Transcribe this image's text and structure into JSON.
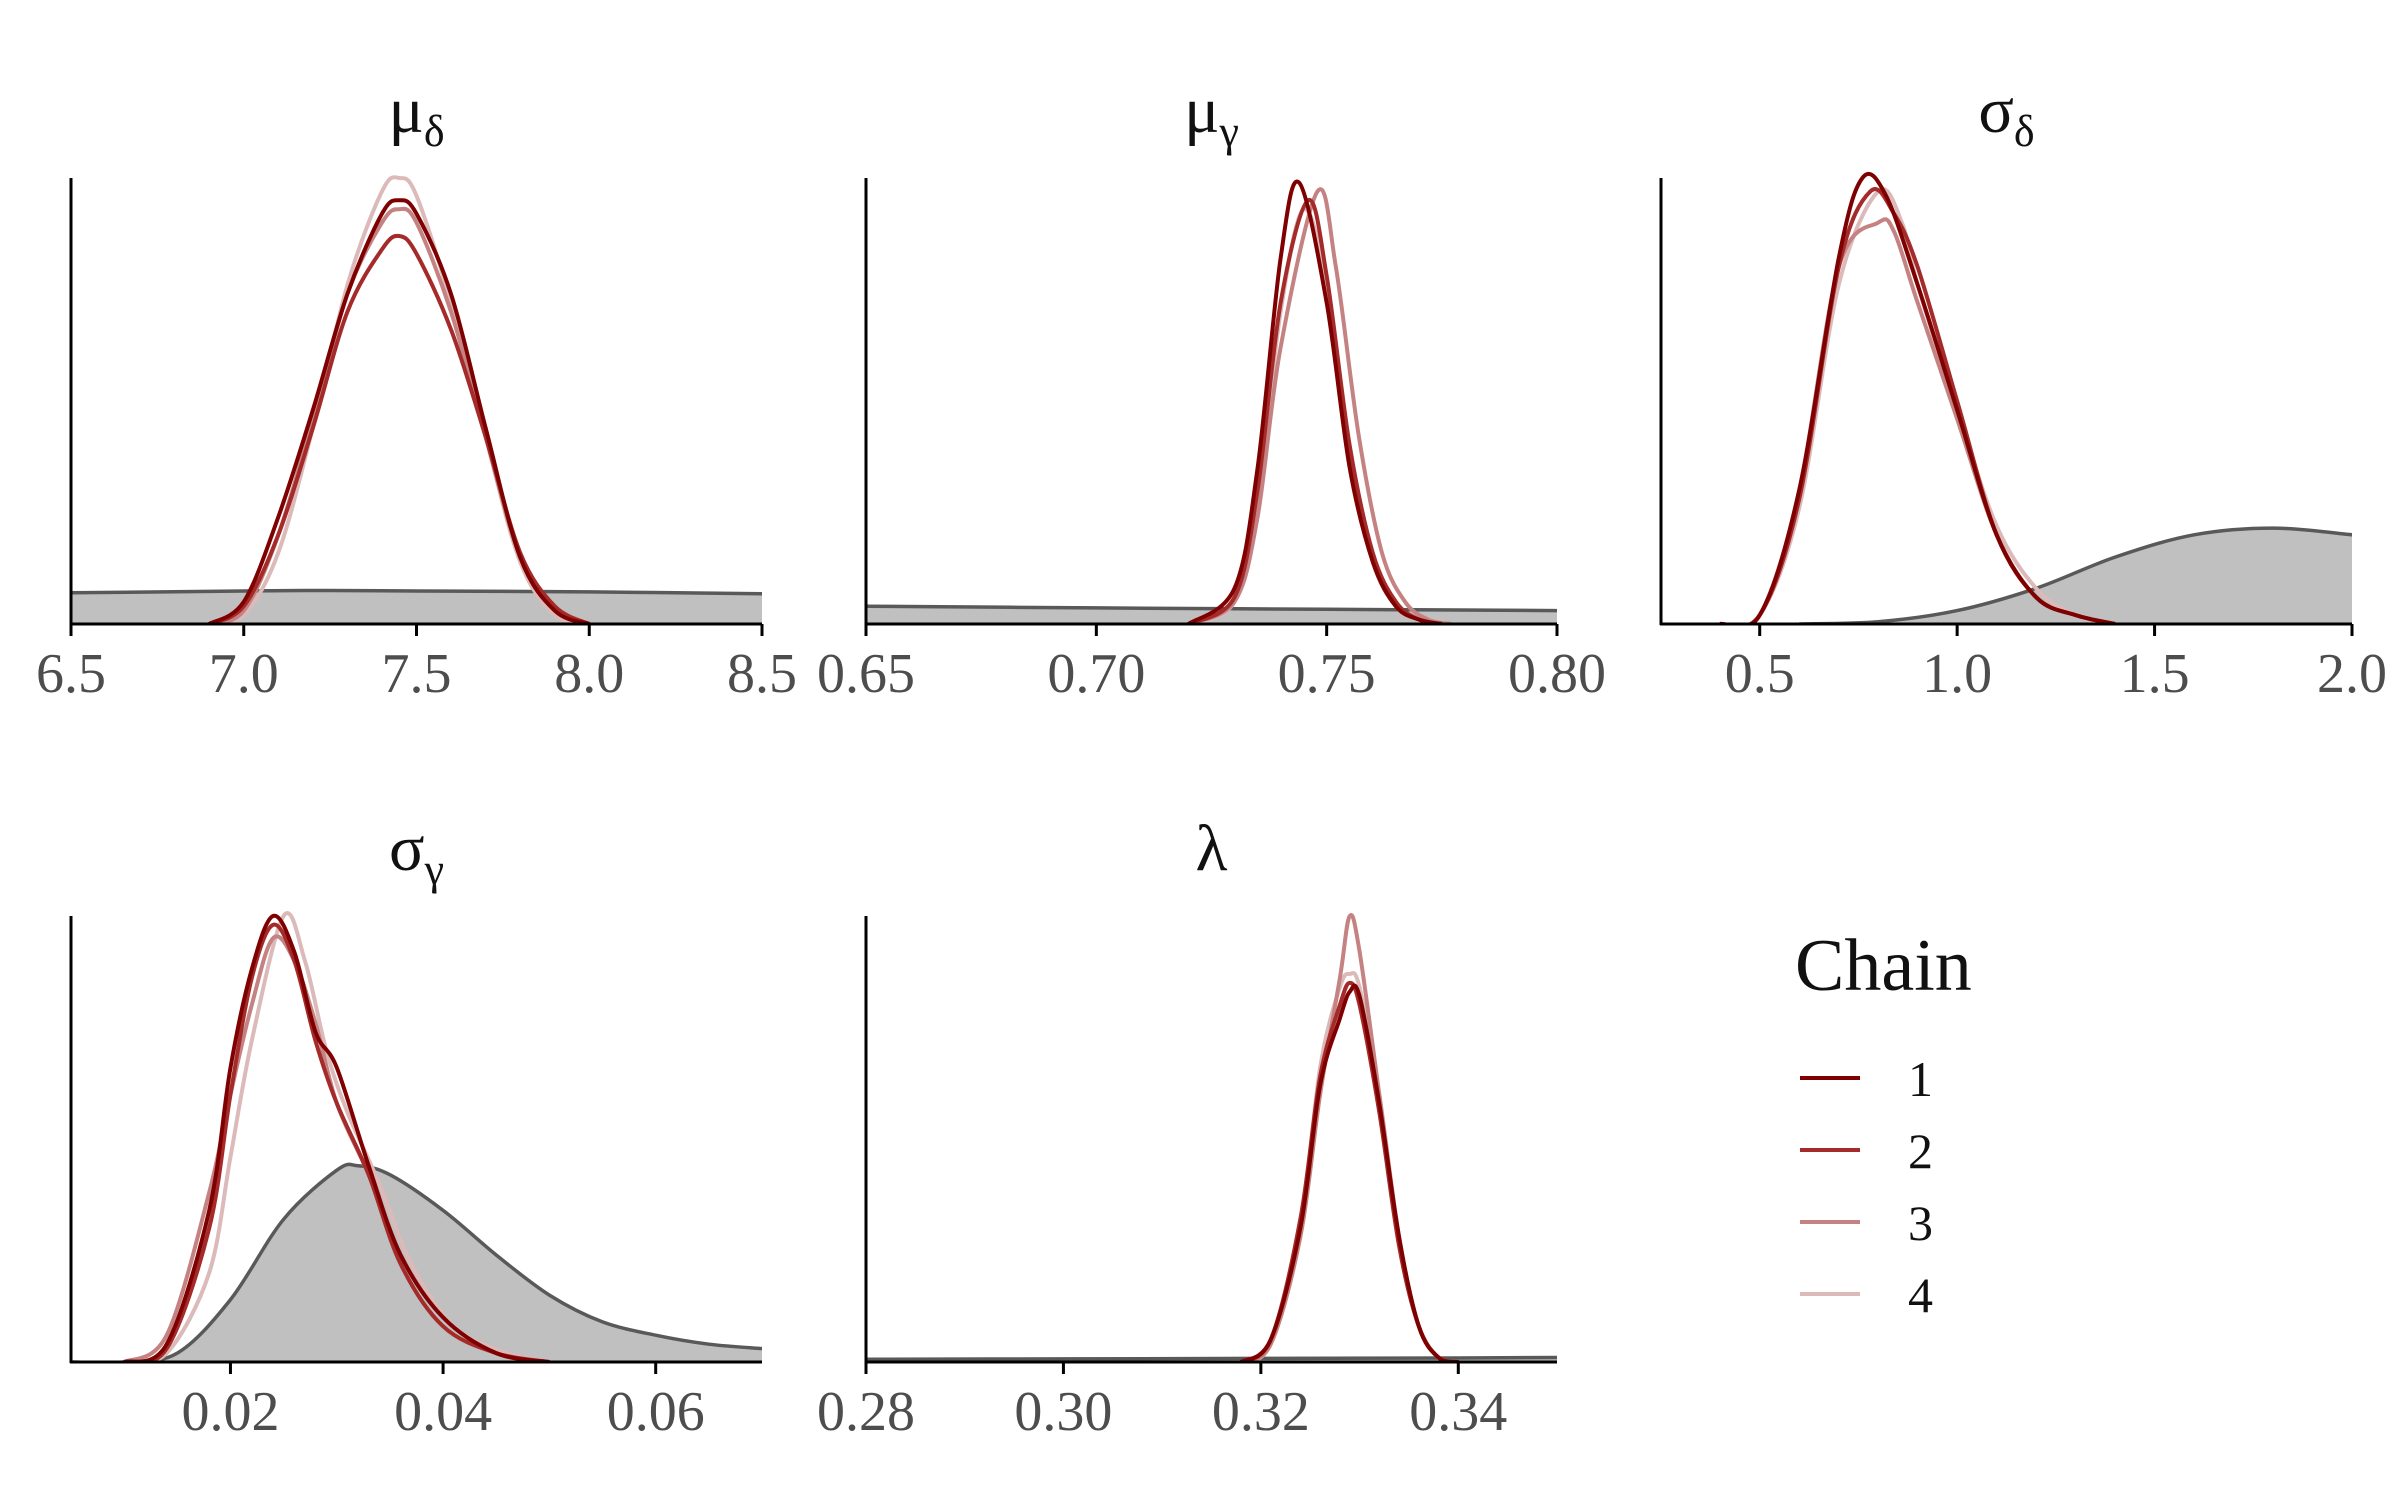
{
  "chart_data": [
    {
      "type": "area",
      "title": "μ_δ",
      "title_main": "μ",
      "title_sub": "δ",
      "xlim": [
        6.5,
        8.5
      ],
      "xticks": [
        6.5,
        7.0,
        7.5,
        8.0,
        8.5
      ],
      "xtick_labels": [
        "6.5",
        "7.0",
        "7.5",
        "8.0",
        "8.5"
      ],
      "prior": {
        "x": [
          6.5,
          7.0,
          7.25,
          7.5,
          8.0,
          8.5
        ],
        "y": [
          0.07,
          0.074,
          0.075,
          0.074,
          0.072,
          0.068
        ]
      },
      "chains": [
        {
          "chain": "1",
          "x": [
            6.9,
            7.0,
            7.1,
            7.2,
            7.3,
            7.4,
            7.45,
            7.5,
            7.6,
            7.7,
            7.8,
            7.9,
            8.0
          ],
          "y": [
            0.0,
            0.05,
            0.24,
            0.48,
            0.74,
            0.92,
            0.95,
            0.92,
            0.74,
            0.44,
            0.15,
            0.03,
            0.0
          ]
        },
        {
          "chain": "2",
          "x": [
            6.9,
            7.0,
            7.1,
            7.2,
            7.3,
            7.4,
            7.45,
            7.5,
            7.6,
            7.7,
            7.8,
            7.9,
            8.0
          ],
          "y": [
            0.0,
            0.04,
            0.2,
            0.44,
            0.7,
            0.84,
            0.87,
            0.83,
            0.66,
            0.42,
            0.16,
            0.04,
            0.0
          ]
        },
        {
          "chain": "3",
          "x": [
            6.9,
            7.0,
            7.1,
            7.2,
            7.3,
            7.4,
            7.45,
            7.5,
            7.6,
            7.7,
            7.8,
            7.9,
            8.0
          ],
          "y": [
            0.0,
            0.03,
            0.2,
            0.46,
            0.74,
            0.9,
            0.93,
            0.9,
            0.7,
            0.42,
            0.15,
            0.03,
            0.0
          ]
        },
        {
          "chain": "4",
          "x": [
            6.9,
            7.0,
            7.1,
            7.2,
            7.3,
            7.4,
            7.45,
            7.5,
            7.6,
            7.7,
            7.8,
            7.9,
            8.0
          ],
          "y": [
            0.0,
            0.02,
            0.16,
            0.44,
            0.76,
            0.97,
            1.0,
            0.96,
            0.72,
            0.42,
            0.14,
            0.02,
            0.0
          ]
        }
      ]
    },
    {
      "type": "area",
      "title": "μ_γ",
      "title_main": "μ",
      "title_sub": "γ",
      "xlim": [
        0.65,
        0.8
      ],
      "xticks": [
        0.65,
        0.7,
        0.75,
        0.8
      ],
      "xtick_labels": [
        "0.65",
        "0.70",
        "0.75",
        "0.80"
      ],
      "prior": {
        "x": [
          0.65,
          0.7,
          0.75,
          0.8
        ],
        "y": [
          0.04,
          0.036,
          0.033,
          0.03
        ]
      },
      "chains": [
        {
          "chain": "1",
          "x": [
            0.72,
            0.73,
            0.735,
            0.74,
            0.744,
            0.75,
            0.755,
            0.76,
            0.765,
            0.77,
            0.775
          ],
          "y": [
            0.0,
            0.08,
            0.35,
            0.82,
            0.99,
            0.72,
            0.35,
            0.14,
            0.04,
            0.01,
            0.0
          ]
        },
        {
          "chain": "2",
          "x": [
            0.72,
            0.73,
            0.735,
            0.74,
            0.746,
            0.75,
            0.755,
            0.76,
            0.765,
            0.77,
            0.775
          ],
          "y": [
            0.0,
            0.06,
            0.3,
            0.72,
            0.95,
            0.78,
            0.4,
            0.16,
            0.05,
            0.01,
            0.0
          ]
        },
        {
          "chain": "3",
          "x": [
            0.72,
            0.73,
            0.735,
            0.74,
            0.748,
            0.752,
            0.757,
            0.762,
            0.767,
            0.772,
            0.777
          ],
          "y": [
            0.0,
            0.05,
            0.24,
            0.62,
            0.97,
            0.8,
            0.42,
            0.16,
            0.05,
            0.01,
            0.0
          ]
        },
        {
          "chain": "4",
          "x": [
            0.72,
            0.73,
            0.735,
            0.74,
            0.745,
            0.75,
            0.755,
            0.76,
            0.765,
            0.77,
            0.775
          ],
          "y": [
            0.0,
            0.05,
            0.28,
            0.7,
            0.93,
            0.76,
            0.38,
            0.14,
            0.04,
            0.01,
            0.0
          ]
        }
      ]
    },
    {
      "type": "area",
      "title": "σ_δ",
      "title_main": "σ",
      "title_sub": "δ",
      "xlim": [
        0.25,
        2.0
      ],
      "xticks": [
        0.5,
        1.0,
        1.5,
        2.0
      ],
      "xtick_labels": [
        "0.5",
        "1.0",
        "1.5",
        "2.0"
      ],
      "prior": {
        "x": [
          0.6,
          0.8,
          1.0,
          1.2,
          1.4,
          1.6,
          1.8,
          2.0
        ],
        "y": [
          0.0,
          0.005,
          0.03,
          0.08,
          0.15,
          0.2,
          0.215,
          0.2
        ]
      },
      "chains": [
        {
          "chain": "1",
          "x": [
            0.4,
            0.5,
            0.6,
            0.7,
            0.76,
            0.82,
            0.9,
            1.0,
            1.1,
            1.2,
            1.3,
            1.4
          ],
          "y": [
            0.0,
            0.02,
            0.3,
            0.82,
            1.0,
            0.96,
            0.76,
            0.48,
            0.2,
            0.06,
            0.02,
            0.0
          ]
        },
        {
          "chain": "2",
          "x": [
            0.4,
            0.5,
            0.6,
            0.7,
            0.78,
            0.84,
            0.9,
            1.0,
            1.1,
            1.2,
            1.3,
            1.4
          ],
          "y": [
            0.0,
            0.02,
            0.28,
            0.8,
            0.97,
            0.92,
            0.8,
            0.5,
            0.2,
            0.06,
            0.02,
            0.0
          ]
        },
        {
          "chain": "3",
          "x": [
            0.4,
            0.5,
            0.6,
            0.7,
            0.8,
            0.84,
            0.9,
            1.0,
            1.1,
            1.2,
            1.3,
            1.4
          ],
          "y": [
            0.0,
            0.02,
            0.3,
            0.8,
            0.9,
            0.88,
            0.72,
            0.46,
            0.2,
            0.06,
            0.02,
            0.0
          ]
        },
        {
          "chain": "4",
          "x": [
            0.4,
            0.5,
            0.6,
            0.7,
            0.8,
            0.86,
            0.9,
            1.0,
            1.1,
            1.2,
            1.3,
            1.4
          ],
          "y": [
            0.0,
            0.02,
            0.26,
            0.76,
            0.97,
            0.9,
            0.76,
            0.48,
            0.22,
            0.08,
            0.02,
            0.0
          ]
        }
      ]
    },
    {
      "type": "area",
      "title": "σ_γ",
      "title_main": "σ",
      "title_sub": "γ",
      "xlim": [
        0.005,
        0.07
      ],
      "xticks": [
        0.02,
        0.04,
        0.06
      ],
      "xtick_labels": [
        "0.02",
        "0.04",
        "0.06"
      ],
      "prior": {
        "x": [
          0.005,
          0.01,
          0.015,
          0.02,
          0.025,
          0.03,
          0.032,
          0.035,
          0.04,
          0.045,
          0.05,
          0.055,
          0.06,
          0.065,
          0.07
        ],
        "y": [
          0.0,
          0.0,
          0.02,
          0.14,
          0.32,
          0.43,
          0.44,
          0.42,
          0.34,
          0.24,
          0.15,
          0.09,
          0.06,
          0.04,
          0.03
        ]
      },
      "chains": [
        {
          "chain": "1",
          "x": [
            0.01,
            0.014,
            0.018,
            0.02,
            0.022,
            0.024,
            0.026,
            0.028,
            0.03,
            0.033,
            0.036,
            0.04,
            0.045,
            0.05
          ],
          "y": [
            0.0,
            0.04,
            0.34,
            0.66,
            0.88,
            1.0,
            0.92,
            0.74,
            0.66,
            0.44,
            0.24,
            0.1,
            0.02,
            0.0
          ]
        },
        {
          "chain": "2",
          "x": [
            0.01,
            0.014,
            0.018,
            0.02,
            0.022,
            0.024,
            0.026,
            0.028,
            0.03,
            0.033,
            0.036,
            0.04,
            0.045,
            0.05
          ],
          "y": [
            0.0,
            0.03,
            0.3,
            0.6,
            0.86,
            0.98,
            0.9,
            0.72,
            0.58,
            0.42,
            0.22,
            0.08,
            0.02,
            0.0
          ]
        },
        {
          "chain": "3",
          "x": [
            0.01,
            0.014,
            0.018,
            0.02,
            0.022,
            0.024,
            0.026,
            0.028,
            0.03,
            0.033,
            0.036,
            0.04,
            0.045,
            0.05
          ],
          "y": [
            0.0,
            0.06,
            0.38,
            0.6,
            0.8,
            0.95,
            0.9,
            0.76,
            0.58,
            0.42,
            0.24,
            0.1,
            0.02,
            0.0
          ]
        },
        {
          "chain": "4",
          "x": [
            0.01,
            0.014,
            0.018,
            0.02,
            0.022,
            0.025,
            0.027,
            0.029,
            0.031,
            0.034,
            0.037,
            0.041,
            0.046,
            0.05
          ],
          "y": [
            0.0,
            0.02,
            0.2,
            0.46,
            0.72,
            1.0,
            0.9,
            0.7,
            0.56,
            0.4,
            0.22,
            0.08,
            0.02,
            0.0
          ]
        }
      ]
    },
    {
      "type": "area",
      "title": "λ",
      "title_main": "λ",
      "title_sub": "",
      "xlim": [
        0.28,
        0.35
      ],
      "xticks": [
        0.28,
        0.3,
        0.32,
        0.34
      ],
      "xtick_labels": [
        "0.28",
        "0.30",
        "0.32",
        "0.34"
      ],
      "prior": {
        "x": [
          0.28,
          0.3,
          0.32,
          0.34,
          0.35
        ],
        "y": [
          0.006,
          0.007,
          0.008,
          0.009,
          0.01
        ]
      },
      "chains": [
        {
          "chain": "1",
          "x": [
            0.318,
            0.321,
            0.324,
            0.326,
            0.328,
            0.329,
            0.33,
            0.332,
            0.334,
            0.336,
            0.338,
            0.34
          ],
          "y": [
            0.0,
            0.05,
            0.3,
            0.62,
            0.77,
            0.83,
            0.82,
            0.58,
            0.28,
            0.08,
            0.01,
            0.0
          ]
        },
        {
          "chain": "2",
          "x": [
            0.318,
            0.321,
            0.324,
            0.326,
            0.328,
            0.329,
            0.33,
            0.332,
            0.334,
            0.336,
            0.338,
            0.34
          ],
          "y": [
            0.0,
            0.05,
            0.32,
            0.64,
            0.8,
            0.85,
            0.8,
            0.56,
            0.26,
            0.08,
            0.01,
            0.0
          ]
        },
        {
          "chain": "3",
          "x": [
            0.318,
            0.321,
            0.324,
            0.326,
            0.328,
            0.329,
            0.33,
            0.332,
            0.334,
            0.336,
            0.338,
            0.34
          ],
          "y": [
            0.0,
            0.04,
            0.28,
            0.6,
            0.86,
            1.0,
            0.92,
            0.6,
            0.28,
            0.08,
            0.01,
            0.0
          ]
        },
        {
          "chain": "4",
          "x": [
            0.318,
            0.321,
            0.324,
            0.326,
            0.328,
            0.329,
            0.33,
            0.332,
            0.334,
            0.336,
            0.338,
            0.34
          ],
          "y": [
            0.0,
            0.04,
            0.3,
            0.66,
            0.84,
            0.87,
            0.84,
            0.6,
            0.28,
            0.08,
            0.01,
            0.0
          ]
        }
      ]
    }
  ],
  "legend": {
    "title": "Chain",
    "items": [
      {
        "label": "1",
        "color": "#7f0000"
      },
      {
        "label": "2",
        "color": "#a52a2a"
      },
      {
        "label": "3",
        "color": "#c58282"
      },
      {
        "label": "4",
        "color": "#dcbaba"
      }
    ]
  },
  "colors": {
    "prior_fill": "#c0c0c0",
    "prior_line": "#595959",
    "axis": "#000000",
    "tick_text": "#4d4d4d"
  }
}
